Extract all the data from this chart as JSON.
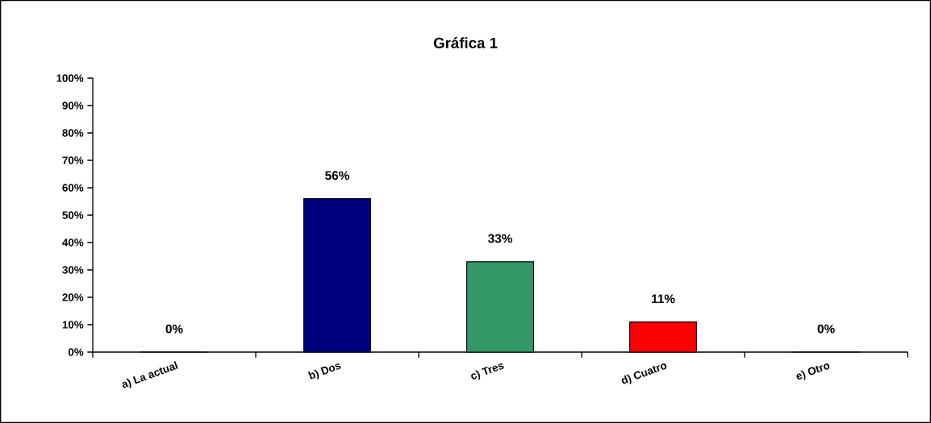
{
  "chart_data": {
    "type": "bar",
    "title": "Gráfica 1",
    "categories": [
      "a) La actual",
      "b) Dos",
      "c) Tres",
      "d) Cuatro",
      "e) Otro"
    ],
    "values": [
      0,
      56,
      33,
      11,
      0
    ],
    "colors": [
      "#000080",
      "#000080",
      "#339966",
      "#ff0000",
      "#000080"
    ],
    "value_labels": [
      "0%",
      "56%",
      "33%",
      "11%",
      "0%"
    ],
    "ylim": [
      0,
      100
    ],
    "yticks": [
      {
        "value": 0,
        "label": "0%"
      },
      {
        "value": 10,
        "label": "10%"
      },
      {
        "value": 20,
        "label": "20%"
      },
      {
        "value": 30,
        "label": "30%"
      },
      {
        "value": 40,
        "label": "40%"
      },
      {
        "value": 50,
        "label": "50%"
      },
      {
        "value": 60,
        "label": "60%"
      },
      {
        "value": 70,
        "label": "70%"
      },
      {
        "value": 80,
        "label": "80%"
      },
      {
        "value": 90,
        "label": "90%"
      },
      {
        "value": 100,
        "label": "100%"
      }
    ],
    "grid": false
  }
}
